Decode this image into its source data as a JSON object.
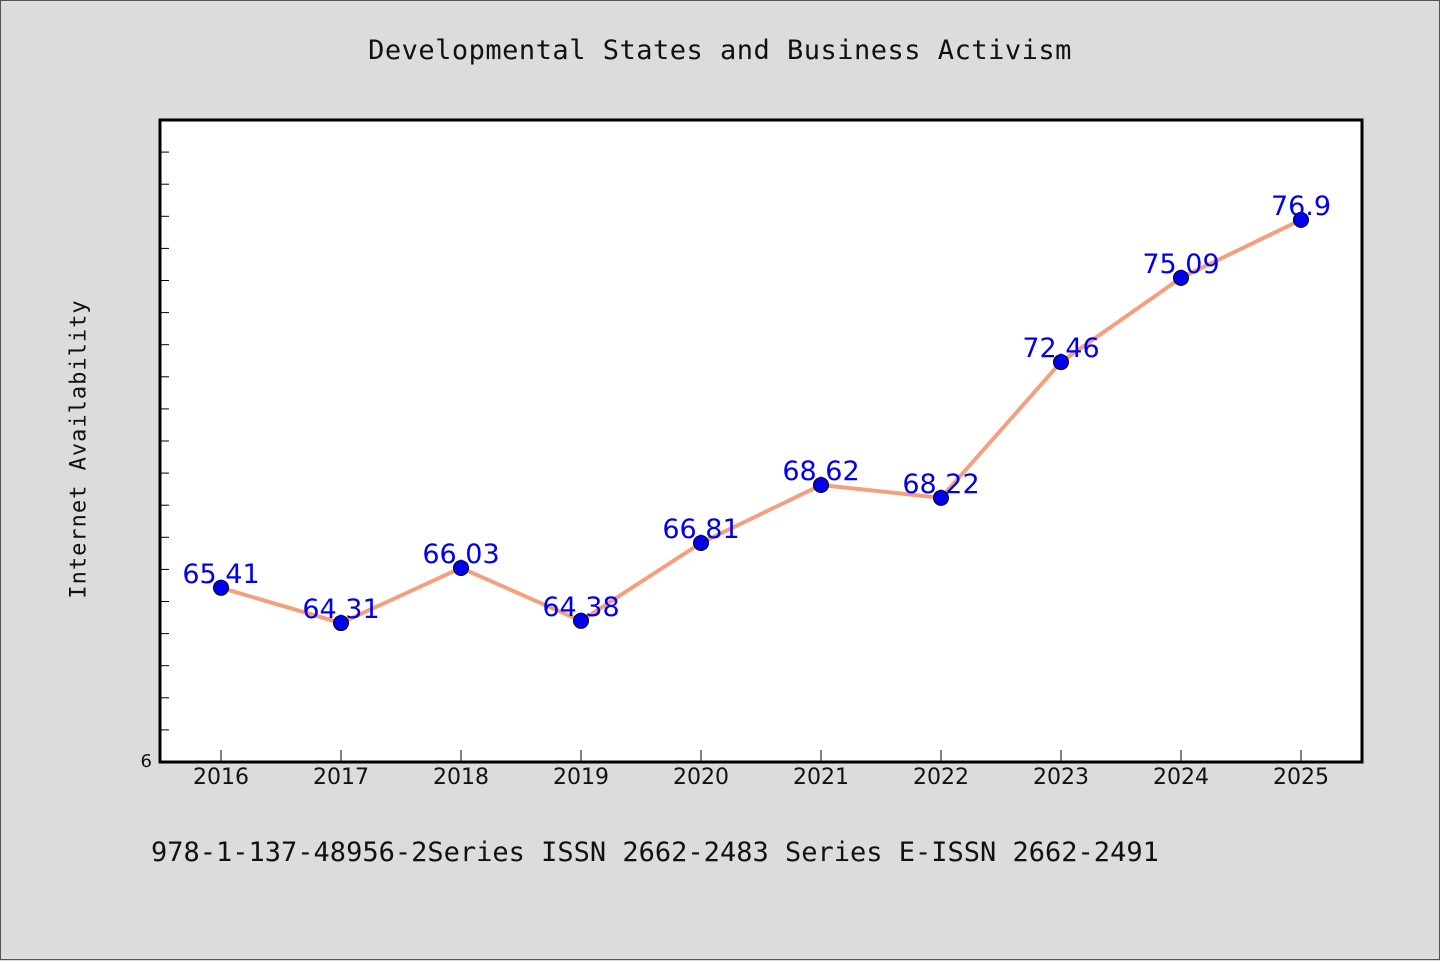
{
  "chart_data": {
    "type": "line",
    "title": "Developmental States and Business Activism",
    "xlabel": "",
    "ylabel": "Internet Availability",
    "categories": [
      "2016",
      "2017",
      "2018",
      "2019",
      "2020",
      "2021",
      "2022",
      "2023",
      "2024",
      "2025"
    ],
    "series": [
      {
        "values": [
          65.41,
          64.31,
          66.03,
          64.38,
          66.81,
          68.62,
          68.22,
          72.46,
          75.09,
          76.9
        ],
        "data_labels": [
          "65.41",
          "64.31",
          "66.03",
          "64.38",
          "66.81",
          "68.62",
          "68.22",
          "72.46",
          "75.09",
          "76.9"
        ]
      }
    ],
    "y_tick_label": "6",
    "ylim": [
      59.97,
      80.02
    ],
    "grid": false,
    "colors": {
      "line": "#f4a07f",
      "marker": "#0000ee",
      "data_label": "#0000ee",
      "background": "#dcdcdc",
      "plot_background": "#ffffff"
    }
  },
  "footer": "978-1-137-48956-2Series ISSN 2662-2483 Series E-ISSN 2662-2491"
}
